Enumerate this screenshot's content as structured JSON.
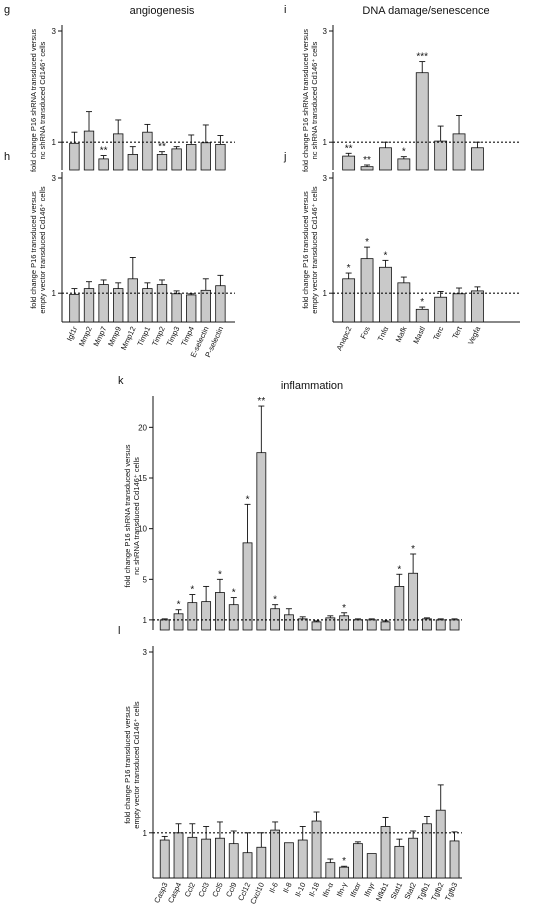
{
  "section_titles": {
    "left": "angiogenesis",
    "right": "DNA damage/senescence",
    "bottom": "inflammation"
  },
  "colors": {
    "bar_fill": "#c9c9c9",
    "stroke": "#111111"
  },
  "chart_data": [
    {
      "id": "g",
      "type": "bar",
      "panel_letter": "g",
      "title": "angiogenesis",
      "ylabel_lines": [
        "fold change P16 shRNA transduced versus",
        "nc shRNA transduced Cd146⁺ cells"
      ],
      "ylim": [
        0.5,
        3
      ],
      "yticks": [
        1,
        3
      ],
      "reference_line": 1,
      "grid": false,
      "categories": [
        "Igf1r",
        "Mmp2",
        "Mmp7",
        "Mmp9",
        "Mmp12",
        "Timp1",
        "Timp2",
        "Timp3",
        "Timp4",
        "E-selectin",
        "P-selectin"
      ],
      "values": [
        0.98,
        1.2,
        0.7,
        1.15,
        0.78,
        1.18,
        0.78,
        0.88,
        0.96,
        0.99,
        0.96
      ],
      "errors": [
        0.2,
        0.35,
        0.06,
        0.25,
        0.14,
        0.14,
        0.05,
        0.04,
        0.17,
        0.32,
        0.16
      ],
      "significance": [
        "",
        "",
        "**",
        "",
        "",
        "",
        "**",
        "",
        "",
        "",
        ""
      ],
      "show_xlabels": false
    },
    {
      "id": "h",
      "type": "bar",
      "panel_letter": "h",
      "ylabel_lines": [
        "fold change P16 transduced versus",
        "empty vector transduced Cd146⁺ cells"
      ],
      "ylim": [
        0.5,
        3
      ],
      "yticks": [
        1,
        3
      ],
      "reference_line": 1,
      "grid": false,
      "categories": [
        "Igf1r",
        "Mmp2",
        "Mmp7",
        "Mmp9",
        "Mmp12",
        "Timp1",
        "Timp2",
        "Timp3",
        "Timp4",
        "E-selectin",
        "P-selectin"
      ],
      "values": [
        0.98,
        1.08,
        1.15,
        1.08,
        1.25,
        1.08,
        1.15,
        0.99,
        0.97,
        1.05,
        1.13
      ],
      "errors": [
        0.1,
        0.12,
        0.08,
        0.1,
        0.37,
        0.1,
        0.08,
        0.05,
        0.02,
        0.2,
        0.18
      ],
      "significance": [
        "",
        "",
        "",
        "",
        "",
        "",
        "",
        "",
        "",
        "",
        ""
      ],
      "show_xlabels": true
    },
    {
      "id": "i",
      "type": "bar",
      "panel_letter": "i",
      "title": "DNA damage/senescence",
      "ylabel_lines": [
        "fold change P16 shRNA transduced versus",
        "nc shRNA transduced Cd146⁺ cells"
      ],
      "ylim": [
        0.5,
        3
      ],
      "yticks": [
        1,
        3
      ],
      "reference_line": 1,
      "grid": false,
      "categories": [
        "Anapc2",
        "Fos",
        "Tnfα",
        "Mafk",
        "Mastl",
        "Terc",
        "Tert",
        "Vegfa"
      ],
      "values": [
        0.75,
        0.56,
        0.9,
        0.7,
        2.25,
        1.02,
        1.15,
        0.9
      ],
      "errors": [
        0.05,
        0.03,
        0.1,
        0.04,
        0.2,
        0.27,
        0.33,
        0.1
      ],
      "significance": [
        "**",
        "**",
        "",
        "*",
        "***",
        "",
        "",
        ""
      ],
      "show_xlabels": false
    },
    {
      "id": "j",
      "type": "bar",
      "panel_letter": "j",
      "ylabel_lines": [
        "fold change P16 transduced versus",
        "empty vector transduced Cd146⁺ cells"
      ],
      "ylim": [
        0.5,
        3
      ],
      "yticks": [
        1,
        3
      ],
      "reference_line": 1,
      "grid": false,
      "categories": [
        "Anapc2",
        "Fos",
        "Tnfα",
        "Mafk",
        "Mastl",
        "Terc",
        "Tert",
        "Vegfa"
      ],
      "values": [
        1.25,
        1.6,
        1.45,
        1.18,
        0.72,
        0.93,
        0.99,
        1.04
      ],
      "errors": [
        0.1,
        0.2,
        0.12,
        0.1,
        0.04,
        0.1,
        0.1,
        0.07
      ],
      "significance": [
        "*",
        "*",
        "*",
        "",
        "*",
        "",
        "",
        ""
      ],
      "show_xlabels": true
    },
    {
      "id": "k",
      "type": "bar",
      "panel_letter": "k",
      "title": "inflammation",
      "ylabel_lines": [
        "fold change P16 shRNA transduced versus",
        "nc shRNA transduced Cd146⁺ cells"
      ],
      "ylim": [
        0,
        22.5
      ],
      "yticks": [
        1,
        5,
        10,
        15,
        20
      ],
      "reference_line": 1,
      "grid": false,
      "categories": [
        "Casp3",
        "Casp4",
        "Ccl2",
        "Ccl3",
        "Ccl5",
        "Ccl9",
        "Ccl12",
        "Cxcl10",
        "Il-6",
        "Il-8",
        "Il-10",
        "Il-18",
        "Ifn-α",
        "Ifn-γ",
        "Ifnαr",
        "Ifnγr",
        "Nfkb1",
        "Stat1",
        "Stat2",
        "Tgfb1",
        "Tgfb2",
        "Tgfb3"
      ],
      "values": [
        1.0,
        1.6,
        2.7,
        2.8,
        3.7,
        2.5,
        8.6,
        17.5,
        2.1,
        1.5,
        1.1,
        0.8,
        1.2,
        1.4,
        1.0,
        1.0,
        0.8,
        4.3,
        5.6,
        1.1,
        1.0,
        1.0
      ],
      "errors": [
        0.1,
        0.4,
        0.8,
        1.5,
        1.3,
        0.7,
        3.8,
        4.6,
        0.4,
        0.6,
        0.2,
        0.1,
        0.2,
        0.3,
        0.1,
        0.1,
        0.1,
        1.2,
        1.9,
        0.1,
        0.1,
        0.1
      ],
      "significance": [
        "",
        "*",
        "*",
        "",
        "*",
        "*",
        "*",
        "**",
        "*",
        "",
        "",
        "",
        "",
        "*",
        "",
        "",
        "",
        "*",
        "*",
        "",
        "",
        ""
      ],
      "show_xlabels": false
    },
    {
      "id": "l",
      "type": "bar",
      "panel_letter": "l",
      "ylabel_lines": [
        "fold change P16 transduced versus",
        "empty vector transduced Cd146⁺ cells"
      ],
      "ylim": [
        0.5,
        3
      ],
      "yticks": [
        1,
        3
      ],
      "reference_line": 1,
      "grid": false,
      "categories": [
        "Casp3",
        "Casp4",
        "Ccl2",
        "Ccl3",
        "Ccl5",
        "Ccl9",
        "Ccl12",
        "Cxcl10",
        "Il-6",
        "Il-8",
        "Il-10",
        "Il-18",
        "Ifn-α",
        "Ifn-γ",
        "Ifnαr",
        "Ifnγr",
        "Nfkb1",
        "Stat1",
        "Stat2",
        "Tgfb1",
        "Tgfb2",
        "Tgfb3"
      ],
      "values": [
        0.92,
        1.0,
        0.95,
        0.93,
        0.94,
        0.88,
        0.78,
        0.84,
        1.03,
        0.89,
        0.92,
        1.13,
        0.67,
        0.62,
        0.88,
        0.77,
        1.07,
        0.85,
        0.94,
        1.1,
        1.25,
        0.91
      ],
      "errors": [
        0.04,
        0.1,
        0.15,
        0.14,
        0.18,
        0.14,
        0.22,
        0.16,
        0.09,
        0.0,
        0.15,
        0.1,
        0.04,
        0.01,
        0.02,
        0.0,
        0.1,
        0.08,
        0.08,
        0.08,
        0.28,
        0.1
      ],
      "significance": [
        "",
        "",
        "",
        "",
        "",
        "",
        "",
        "",
        "",
        "",
        "",
        "",
        "",
        "*",
        "",
        "",
        "",
        "",
        "",
        "",
        "",
        ""
      ],
      "show_xlabels": true
    }
  ]
}
